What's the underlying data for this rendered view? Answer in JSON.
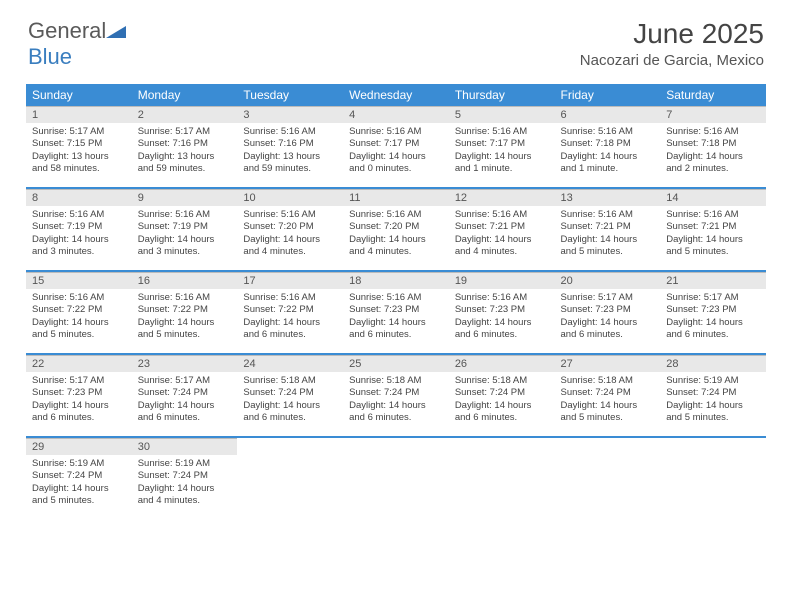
{
  "brand": {
    "part1": "General",
    "part2": "Blue"
  },
  "title": "June 2025",
  "location": "Nacozari de Garcia, Mexico",
  "colors": {
    "header_bg": "#3a8cd4",
    "daynum_bg": "#e8e8e8",
    "text": "#444444"
  },
  "weekdays": [
    "Sunday",
    "Monday",
    "Tuesday",
    "Wednesday",
    "Thursday",
    "Friday",
    "Saturday"
  ],
  "weeks": [
    [
      {
        "n": "1",
        "sr": "Sunrise: 5:17 AM",
        "ss": "Sunset: 7:15 PM",
        "d1": "Daylight: 13 hours",
        "d2": "and 58 minutes."
      },
      {
        "n": "2",
        "sr": "Sunrise: 5:17 AM",
        "ss": "Sunset: 7:16 PM",
        "d1": "Daylight: 13 hours",
        "d2": "and 59 minutes."
      },
      {
        "n": "3",
        "sr": "Sunrise: 5:16 AM",
        "ss": "Sunset: 7:16 PM",
        "d1": "Daylight: 13 hours",
        "d2": "and 59 minutes."
      },
      {
        "n": "4",
        "sr": "Sunrise: 5:16 AM",
        "ss": "Sunset: 7:17 PM",
        "d1": "Daylight: 14 hours",
        "d2": "and 0 minutes."
      },
      {
        "n": "5",
        "sr": "Sunrise: 5:16 AM",
        "ss": "Sunset: 7:17 PM",
        "d1": "Daylight: 14 hours",
        "d2": "and 1 minute."
      },
      {
        "n": "6",
        "sr": "Sunrise: 5:16 AM",
        "ss": "Sunset: 7:18 PM",
        "d1": "Daylight: 14 hours",
        "d2": "and 1 minute."
      },
      {
        "n": "7",
        "sr": "Sunrise: 5:16 AM",
        "ss": "Sunset: 7:18 PM",
        "d1": "Daylight: 14 hours",
        "d2": "and 2 minutes."
      }
    ],
    [
      {
        "n": "8",
        "sr": "Sunrise: 5:16 AM",
        "ss": "Sunset: 7:19 PM",
        "d1": "Daylight: 14 hours",
        "d2": "and 3 minutes."
      },
      {
        "n": "9",
        "sr": "Sunrise: 5:16 AM",
        "ss": "Sunset: 7:19 PM",
        "d1": "Daylight: 14 hours",
        "d2": "and 3 minutes."
      },
      {
        "n": "10",
        "sr": "Sunrise: 5:16 AM",
        "ss": "Sunset: 7:20 PM",
        "d1": "Daylight: 14 hours",
        "d2": "and 4 minutes."
      },
      {
        "n": "11",
        "sr": "Sunrise: 5:16 AM",
        "ss": "Sunset: 7:20 PM",
        "d1": "Daylight: 14 hours",
        "d2": "and 4 minutes."
      },
      {
        "n": "12",
        "sr": "Sunrise: 5:16 AM",
        "ss": "Sunset: 7:21 PM",
        "d1": "Daylight: 14 hours",
        "d2": "and 4 minutes."
      },
      {
        "n": "13",
        "sr": "Sunrise: 5:16 AM",
        "ss": "Sunset: 7:21 PM",
        "d1": "Daylight: 14 hours",
        "d2": "and 5 minutes."
      },
      {
        "n": "14",
        "sr": "Sunrise: 5:16 AM",
        "ss": "Sunset: 7:21 PM",
        "d1": "Daylight: 14 hours",
        "d2": "and 5 minutes."
      }
    ],
    [
      {
        "n": "15",
        "sr": "Sunrise: 5:16 AM",
        "ss": "Sunset: 7:22 PM",
        "d1": "Daylight: 14 hours",
        "d2": "and 5 minutes."
      },
      {
        "n": "16",
        "sr": "Sunrise: 5:16 AM",
        "ss": "Sunset: 7:22 PM",
        "d1": "Daylight: 14 hours",
        "d2": "and 5 minutes."
      },
      {
        "n": "17",
        "sr": "Sunrise: 5:16 AM",
        "ss": "Sunset: 7:22 PM",
        "d1": "Daylight: 14 hours",
        "d2": "and 6 minutes."
      },
      {
        "n": "18",
        "sr": "Sunrise: 5:16 AM",
        "ss": "Sunset: 7:23 PM",
        "d1": "Daylight: 14 hours",
        "d2": "and 6 minutes."
      },
      {
        "n": "19",
        "sr": "Sunrise: 5:16 AM",
        "ss": "Sunset: 7:23 PM",
        "d1": "Daylight: 14 hours",
        "d2": "and 6 minutes."
      },
      {
        "n": "20",
        "sr": "Sunrise: 5:17 AM",
        "ss": "Sunset: 7:23 PM",
        "d1": "Daylight: 14 hours",
        "d2": "and 6 minutes."
      },
      {
        "n": "21",
        "sr": "Sunrise: 5:17 AM",
        "ss": "Sunset: 7:23 PM",
        "d1": "Daylight: 14 hours",
        "d2": "and 6 minutes."
      }
    ],
    [
      {
        "n": "22",
        "sr": "Sunrise: 5:17 AM",
        "ss": "Sunset: 7:23 PM",
        "d1": "Daylight: 14 hours",
        "d2": "and 6 minutes."
      },
      {
        "n": "23",
        "sr": "Sunrise: 5:17 AM",
        "ss": "Sunset: 7:24 PM",
        "d1": "Daylight: 14 hours",
        "d2": "and 6 minutes."
      },
      {
        "n": "24",
        "sr": "Sunrise: 5:18 AM",
        "ss": "Sunset: 7:24 PM",
        "d1": "Daylight: 14 hours",
        "d2": "and 6 minutes."
      },
      {
        "n": "25",
        "sr": "Sunrise: 5:18 AM",
        "ss": "Sunset: 7:24 PM",
        "d1": "Daylight: 14 hours",
        "d2": "and 6 minutes."
      },
      {
        "n": "26",
        "sr": "Sunrise: 5:18 AM",
        "ss": "Sunset: 7:24 PM",
        "d1": "Daylight: 14 hours",
        "d2": "and 6 minutes."
      },
      {
        "n": "27",
        "sr": "Sunrise: 5:18 AM",
        "ss": "Sunset: 7:24 PM",
        "d1": "Daylight: 14 hours",
        "d2": "and 5 minutes."
      },
      {
        "n": "28",
        "sr": "Sunrise: 5:19 AM",
        "ss": "Sunset: 7:24 PM",
        "d1": "Daylight: 14 hours",
        "d2": "and 5 minutes."
      }
    ],
    [
      {
        "n": "29",
        "sr": "Sunrise: 5:19 AM",
        "ss": "Sunset: 7:24 PM",
        "d1": "Daylight: 14 hours",
        "d2": "and 5 minutes."
      },
      {
        "n": "30",
        "sr": "Sunrise: 5:19 AM",
        "ss": "Sunset: 7:24 PM",
        "d1": "Daylight: 14 hours",
        "d2": "and 4 minutes."
      },
      null,
      null,
      null,
      null,
      null
    ]
  ]
}
